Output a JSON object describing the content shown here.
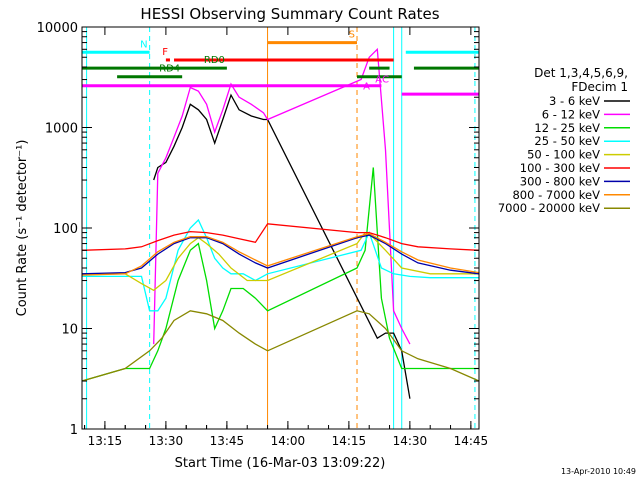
{
  "chart_data": {
    "type": "line",
    "title": "HESSI Observing Summary Count Rates",
    "xlabel": "Start Time (16-Mar-03 13:09:22)",
    "ylabel": "Count Rate (s⁻¹ detector⁻¹)",
    "xlim": [
      "13:09:22",
      "14:47:00"
    ],
    "ylim": [
      1,
      10000
    ],
    "yscale": "log",
    "x_ticks": [
      "13:15",
      "13:30",
      "13:45",
      "14:00",
      "14:15",
      "14:30",
      "14:45"
    ],
    "y_ticks": [
      "1",
      "10",
      "100",
      "1000",
      "10000"
    ],
    "grid": false,
    "legend_position": "right",
    "legend_header": [
      "Det 1,3,4,5,6,9,",
      "FDecim 1"
    ],
    "series": [
      {
        "name": "3 - 6 keV",
        "color": "#000000",
        "x": [
          "13:27:00",
          "13:28:00",
          "13:30:00",
          "13:32:00",
          "13:34:00",
          "13:36:00",
          "13:38:00",
          "13:40:00",
          "13:42:00",
          "13:44:00",
          "13:46:00",
          "13:48:00",
          "13:51:00",
          "13:54:00",
          "13:55:00",
          "14:22:00",
          "14:24:00",
          "14:26:00",
          "14:28:00",
          "14:30:00"
        ],
        "y": [
          300,
          400,
          450,
          650,
          1000,
          1700,
          1500,
          1200,
          700,
          1200,
          2100,
          1500,
          1300,
          1200,
          1200,
          8,
          9,
          9,
          6,
          2
        ]
      },
      {
        "name": "6 - 12 keV",
        "color": "#ff00ff",
        "x": [
          "13:27:00",
          "13:28:00",
          "13:30:00",
          "13:32:00",
          "13:34:00",
          "13:36:00",
          "13:38:00",
          "13:40:00",
          "13:42:00",
          "13:44:00",
          "13:46:00",
          "13:48:00",
          "13:51:00",
          "13:54:00",
          "13:55:00",
          "14:18:00",
          "14:20:00",
          "14:22:00",
          "14:24:00",
          "14:26:00",
          "14:28:00",
          "14:30:00"
        ],
        "y": [
          7,
          350,
          500,
          800,
          1300,
          2500,
          2300,
          1700,
          900,
          1500,
          2700,
          2000,
          1700,
          1400,
          1200,
          3000,
          5000,
          6000,
          600,
          15,
          10,
          7
        ]
      },
      {
        "name": "12 - 25 keV",
        "color": "#00dd00",
        "x": [
          "13:09:22",
          "13:20:00",
          "13:26:00",
          "13:28:00",
          "13:30:00",
          "13:33:00",
          "13:36:00",
          "13:38:00",
          "13:40:00",
          "13:42:00",
          "13:44:00",
          "13:46:00",
          "13:49:00",
          "13:52:00",
          "13:55:00",
          "14:17:00",
          "14:19:00",
          "14:21:00",
          "14:23:00",
          "14:25:00",
          "14:28:00",
          "14:32:00",
          "14:40:00",
          "14:47:00"
        ],
        "y": [
          3,
          4,
          4,
          6,
          10,
          30,
          60,
          70,
          30,
          10,
          15,
          25,
          25,
          20,
          15,
          40,
          60,
          400,
          20,
          8,
          4,
          4,
          4,
          4
        ]
      },
      {
        "name": "25 - 50 keV",
        "color": "#00ffff",
        "x": [
          "13:09:22",
          "13:24:00",
          "13:26:00",
          "13:28:00",
          "13:30:00",
          "13:33:00",
          "13:36:00",
          "13:38:00",
          "13:40:00",
          "13:42:00",
          "13:44:00",
          "13:46:00",
          "13:49:00",
          "13:52:00",
          "13:55:00",
          "14:18:00",
          "14:20:00",
          "14:23:00",
          "14:26:00",
          "14:30:00",
          "14:35:00",
          "14:47:00"
        ],
        "y": [
          33,
          33,
          15,
          15,
          20,
          60,
          100,
          120,
          80,
          50,
          40,
          35,
          35,
          30,
          35,
          60,
          90,
          40,
          35,
          33,
          32,
          32
        ]
      },
      {
        "name": "50 - 100 keV",
        "color": "#cccc00",
        "x": [
          "13:09:22",
          "13:20:00",
          "13:24:00",
          "13:27:00",
          "13:30:00",
          "13:33:00",
          "13:36:00",
          "13:38:00",
          "13:40:00",
          "13:43:00",
          "13:46:00",
          "13:50:00",
          "13:55:00",
          "14:17:00",
          "14:19:00",
          "14:21:00",
          "14:24:00",
          "14:28:00",
          "14:35:00",
          "14:47:00"
        ],
        "y": [
          35,
          35,
          28,
          24,
          30,
          50,
          70,
          80,
          70,
          55,
          40,
          30,
          30,
          70,
          90,
          80,
          60,
          40,
          35,
          35
        ]
      },
      {
        "name": "100 - 300 keV",
        "color": "#ff0000",
        "x": [
          "13:09:22",
          "13:20:00",
          "13:24:00",
          "13:28:00",
          "13:32:00",
          "13:36:00",
          "13:40:00",
          "13:44:00",
          "13:48:00",
          "13:52:00",
          "13:55:00",
          "14:17:00",
          "14:20:00",
          "14:24:00",
          "14:28:00",
          "14:32:00",
          "14:40:00",
          "14:47:00"
        ],
        "y": [
          60,
          62,
          65,
          75,
          85,
          92,
          90,
          85,
          78,
          72,
          110,
          90,
          90,
          80,
          70,
          65,
          62,
          60
        ]
      },
      {
        "name": "300 - 800 keV",
        "color": "#0000aa",
        "x": [
          "13:09:22",
          "13:20:00",
          "13:24:00",
          "13:28:00",
          "13:32:00",
          "13:36:00",
          "13:40:00",
          "13:44:00",
          "13:48:00",
          "13:52:00",
          "13:55:00",
          "14:17:00",
          "14:20:00",
          "14:24:00",
          "14:28:00",
          "14:32:00",
          "14:40:00",
          "14:47:00"
        ],
        "y": [
          35,
          36,
          40,
          55,
          70,
          80,
          80,
          70,
          55,
          45,
          40,
          80,
          85,
          70,
          55,
          45,
          38,
          35
        ]
      },
      {
        "name": "800 - 7000 keV",
        "color": "#ff8800",
        "x": [
          "13:09:22",
          "13:20:00",
          "13:24:00",
          "13:28:00",
          "13:32:00",
          "13:36:00",
          "13:40:00",
          "13:44:00",
          "13:48:00",
          "13:52:00",
          "13:55:00",
          "14:17:00",
          "14:20:00",
          "14:24:00",
          "14:28:00",
          "14:32:00",
          "14:40:00",
          "14:47:00"
        ],
        "y": [
          34,
          35,
          42,
          58,
          72,
          82,
          82,
          72,
          58,
          48,
          42,
          82,
          88,
          72,
          58,
          48,
          40,
          36
        ]
      },
      {
        "name": "7000 - 20000 keV",
        "color": "#888800",
        "x": [
          "13:09:22",
          "13:20:00",
          "13:26:00",
          "13:29:00",
          "13:32:00",
          "13:36:00",
          "13:40:00",
          "13:44:00",
          "13:48:00",
          "13:52:00",
          "13:55:00",
          "14:17:00",
          "14:20:00",
          "14:24:00",
          "14:28:00",
          "14:32:00",
          "14:40:00",
          "14:47:00"
        ],
        "y": [
          3,
          4,
          6,
          8,
          12,
          15,
          14,
          12,
          9,
          7,
          6,
          15,
          14,
          10,
          6,
          5,
          4,
          3
        ]
      }
    ],
    "flag_bars": [
      {
        "label": "N",
        "color": "#00ffff",
        "y": 5600,
        "segments": [
          [
            "13:09:22",
            "13:26:00"
          ],
          [
            "14:29:00",
            "14:47:00"
          ]
        ]
      },
      {
        "label": "F",
        "color": "#ff0000",
        "y": 4700,
        "segments": [
          [
            "13:30:00",
            "13:31:00"
          ],
          [
            "13:32:00",
            "14:26:00"
          ]
        ]
      },
      {
        "label": "S",
        "color": "#ff8800",
        "y": 7000,
        "segments": [
          [
            "13:55:00",
            "14:17:00"
          ]
        ]
      },
      {
        "label": "RD0",
        "color": "#007700",
        "y": 3900,
        "segments": [
          [
            "13:09:22",
            "13:45:00"
          ],
          [
            "14:20:00",
            "14:25:00"
          ],
          [
            "14:31:00",
            "14:47:00"
          ]
        ]
      },
      {
        "label": "RD4",
        "color": "#007700",
        "y": 3200,
        "segments": [
          [
            "13:18:00",
            "13:34:00"
          ],
          [
            "14:17:00",
            "14:28:00"
          ]
        ]
      },
      {
        "label": "",
        "color": "#ff00ff",
        "y": 2600,
        "segments": [
          [
            "13:09:22",
            "14:23:00"
          ]
        ]
      },
      {
        "label": "",
        "color": "#ff00ff",
        "y": 2150,
        "segments": [
          [
            "14:28:00",
            "14:47:00"
          ]
        ]
      }
    ],
    "marker_labels": [
      {
        "text": "A",
        "color": "#ff00ff",
        "x": "14:18:30",
        "y": 2400
      },
      {
        "text": "AC",
        "color": "#ff00ff",
        "x": "14:21:30",
        "y": 2800
      }
    ],
    "vertical_lines": [
      {
        "x": "13:10:30",
        "color": "#00ffff",
        "style": "solid"
      },
      {
        "x": "13:26:00",
        "color": "#00ffff",
        "style": "dashed"
      },
      {
        "x": "13:55:00",
        "color": "#ff8800",
        "style": "solid"
      },
      {
        "x": "14:17:00",
        "color": "#ff8800",
        "style": "dashed"
      },
      {
        "x": "14:26:00",
        "color": "#00ffff",
        "style": "solid"
      },
      {
        "x": "14:28:00",
        "color": "#00ffff",
        "style": "solid"
      },
      {
        "x": "14:46:00",
        "color": "#00ffff",
        "style": "dashed"
      }
    ]
  },
  "footer": {
    "timestamp": "13-Apr-2010 10:49"
  }
}
